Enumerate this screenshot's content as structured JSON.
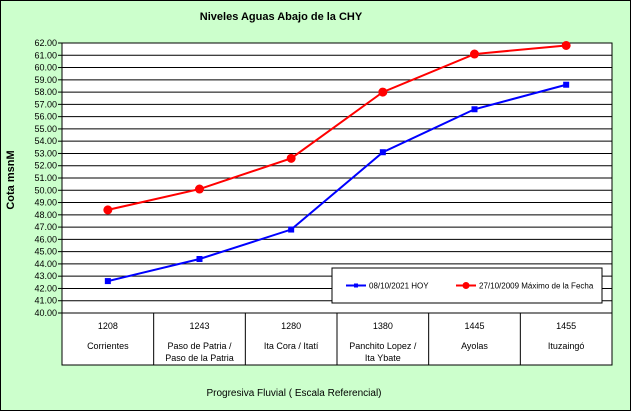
{
  "chart_data": {
    "type": "line",
    "title": "Niveles Aguas Abajo de la CHY",
    "ylabel": "Cota msnM",
    "xlabel": "Progresiva Fluvial ( Escala Referencial)",
    "ylim": [
      40,
      62
    ],
    "ytick_step": 1,
    "grid": true,
    "legend_position": "bottom-right",
    "categories": [
      {
        "code": "1208",
        "name": "Corrientes"
      },
      {
        "code": "1243",
        "name": "Paso de Patria / Paso de la Patria"
      },
      {
        "code": "1280",
        "name": "Ita Cora / Itatí"
      },
      {
        "code": "1380",
        "name": "Panchito Lopez / Ita Ybate"
      },
      {
        "code": "1445",
        "name": "Ayolas"
      },
      {
        "code": "1455",
        "name": "Ituzaingó"
      }
    ],
    "category_lines": [
      [
        "Corrientes"
      ],
      [
        "Paso de Patria /",
        "Paso de la Patria"
      ],
      [
        "Ita Cora / Itatí"
      ],
      [
        "Panchito Lopez /",
        "Ita Ybate"
      ],
      [
        "Ayolas"
      ],
      [
        "Ituzaingó"
      ]
    ],
    "series": [
      {
        "name": "08/10/2021 HOY",
        "color": "#0000ff",
        "marker": "square",
        "values": [
          42.6,
          44.4,
          46.8,
          53.1,
          56.6,
          58.6
        ]
      },
      {
        "name": "27/10/2009 Máximo de la Fecha",
        "color": "#ff0000",
        "marker": "circle",
        "values": [
          48.4,
          50.1,
          52.6,
          58.0,
          61.1,
          61.8
        ]
      }
    ]
  },
  "colors": {
    "frame_background": "#ccffcc",
    "plot_background": "#ffffff"
  }
}
